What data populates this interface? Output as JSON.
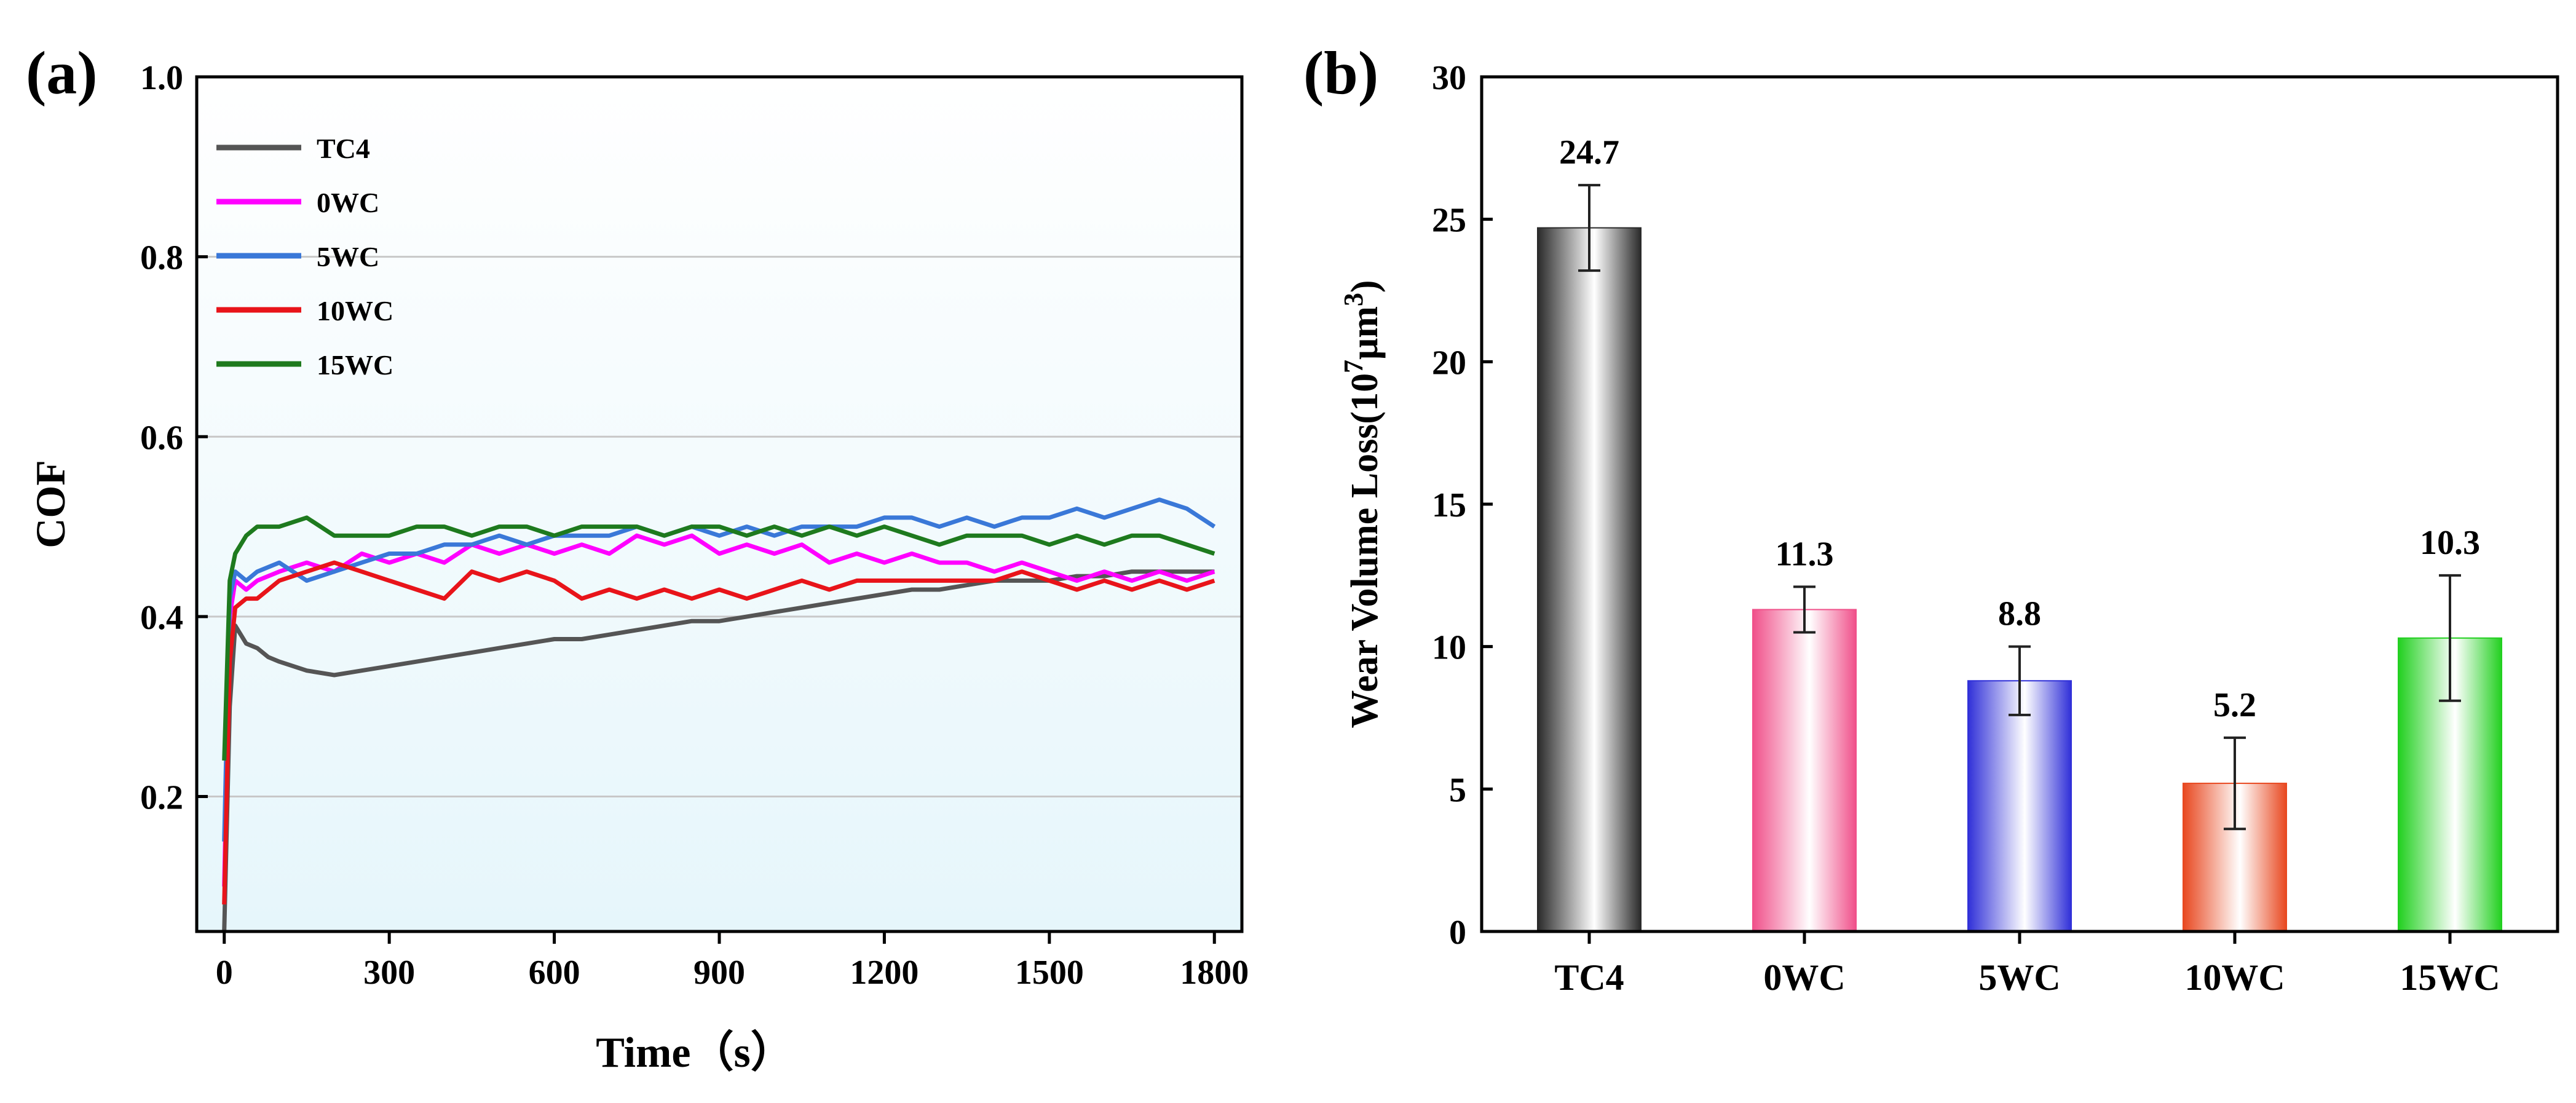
{
  "chart_data": [
    {
      "panel": "(a)",
      "type": "line",
      "xlabel": "Time（s）",
      "ylabel": "COF",
      "xlim": [
        -50,
        1850
      ],
      "ylim": [
        0.05,
        1.0
      ],
      "xticks": [
        0,
        300,
        600,
        900,
        1200,
        1500,
        1800
      ],
      "yticks": [
        0.2,
        0.4,
        0.6,
        0.8,
        1.0
      ],
      "ytick_labels": [
        "0.2",
        "0.4",
        "0.6",
        "0.8",
        "1.0"
      ],
      "grid": true,
      "legend": "top-left",
      "series": [
        {
          "name": "TC4",
          "color": "#555555",
          "x": [
            0,
            10,
            20,
            30,
            40,
            60,
            80,
            100,
            150,
            200,
            250,
            300,
            350,
            400,
            450,
            500,
            550,
            600,
            650,
            700,
            750,
            800,
            850,
            900,
            950,
            1000,
            1050,
            1100,
            1150,
            1200,
            1250,
            1300,
            1350,
            1400,
            1450,
            1500,
            1550,
            1600,
            1650,
            1700,
            1750,
            1800
          ],
          "y": [
            0.05,
            0.3,
            0.39,
            0.38,
            0.37,
            0.365,
            0.355,
            0.35,
            0.34,
            0.335,
            0.34,
            0.345,
            0.35,
            0.355,
            0.36,
            0.365,
            0.37,
            0.375,
            0.375,
            0.38,
            0.385,
            0.39,
            0.395,
            0.395,
            0.4,
            0.405,
            0.41,
            0.415,
            0.42,
            0.425,
            0.43,
            0.43,
            0.435,
            0.44,
            0.44,
            0.44,
            0.445,
            0.445,
            0.45,
            0.45,
            0.45,
            0.45
          ]
        },
        {
          "name": "0WC",
          "color": "#ff00ff",
          "x": [
            0,
            10,
            20,
            40,
            60,
            100,
            150,
            200,
            250,
            300,
            350,
            400,
            450,
            500,
            550,
            600,
            650,
            700,
            750,
            800,
            850,
            900,
            950,
            1000,
            1050,
            1100,
            1150,
            1200,
            1250,
            1300,
            1350,
            1400,
            1450,
            1500,
            1550,
            1600,
            1650,
            1700,
            1750,
            1800
          ],
          "y": [
            0.1,
            0.4,
            0.44,
            0.43,
            0.44,
            0.45,
            0.46,
            0.45,
            0.47,
            0.46,
            0.47,
            0.46,
            0.48,
            0.47,
            0.48,
            0.47,
            0.48,
            0.47,
            0.49,
            0.48,
            0.49,
            0.47,
            0.48,
            0.47,
            0.48,
            0.46,
            0.47,
            0.46,
            0.47,
            0.46,
            0.46,
            0.45,
            0.46,
            0.45,
            0.44,
            0.45,
            0.44,
            0.45,
            0.44,
            0.45
          ]
        },
        {
          "name": "5WC",
          "color": "#3a78d8",
          "x": [
            0,
            10,
            20,
            40,
            60,
            100,
            150,
            200,
            250,
            300,
            350,
            400,
            450,
            500,
            550,
            600,
            650,
            700,
            750,
            800,
            850,
            900,
            950,
            1000,
            1050,
            1100,
            1150,
            1200,
            1250,
            1300,
            1350,
            1400,
            1450,
            1500,
            1550,
            1600,
            1650,
            1700,
            1750,
            1800
          ],
          "y": [
            0.15,
            0.42,
            0.45,
            0.44,
            0.45,
            0.46,
            0.44,
            0.45,
            0.46,
            0.47,
            0.47,
            0.48,
            0.48,
            0.49,
            0.48,
            0.49,
            0.49,
            0.49,
            0.5,
            0.49,
            0.5,
            0.49,
            0.5,
            0.49,
            0.5,
            0.5,
            0.5,
            0.51,
            0.51,
            0.5,
            0.51,
            0.5,
            0.51,
            0.51,
            0.52,
            0.51,
            0.52,
            0.53,
            0.52,
            0.5
          ]
        },
        {
          "name": "10WC",
          "color": "#e8141a",
          "x": [
            0,
            10,
            20,
            40,
            60,
            100,
            150,
            200,
            250,
            300,
            350,
            400,
            450,
            500,
            550,
            600,
            650,
            700,
            750,
            800,
            850,
            900,
            950,
            1000,
            1050,
            1100,
            1150,
            1200,
            1250,
            1300,
            1350,
            1400,
            1450,
            1500,
            1550,
            1600,
            1650,
            1700,
            1750,
            1800
          ],
          "y": [
            0.08,
            0.35,
            0.41,
            0.42,
            0.42,
            0.44,
            0.45,
            0.46,
            0.45,
            0.44,
            0.43,
            0.42,
            0.45,
            0.44,
            0.45,
            0.44,
            0.42,
            0.43,
            0.42,
            0.43,
            0.42,
            0.43,
            0.42,
            0.43,
            0.44,
            0.43,
            0.44,
            0.44,
            0.44,
            0.44,
            0.44,
            0.44,
            0.45,
            0.44,
            0.43,
            0.44,
            0.43,
            0.44,
            0.43,
            0.44
          ]
        },
        {
          "name": "15WC",
          "color": "#1e7a1e",
          "x": [
            0,
            10,
            20,
            40,
            60,
            100,
            150,
            200,
            250,
            300,
            350,
            400,
            450,
            500,
            550,
            600,
            650,
            700,
            750,
            800,
            850,
            900,
            950,
            1000,
            1050,
            1100,
            1150,
            1200,
            1250,
            1300,
            1350,
            1400,
            1450,
            1500,
            1550,
            1600,
            1650,
            1700,
            1750,
            1800
          ],
          "y": [
            0.24,
            0.44,
            0.47,
            0.49,
            0.5,
            0.5,
            0.51,
            0.49,
            0.49,
            0.49,
            0.5,
            0.5,
            0.49,
            0.5,
            0.5,
            0.49,
            0.5,
            0.5,
            0.5,
            0.49,
            0.5,
            0.5,
            0.49,
            0.5,
            0.49,
            0.5,
            0.49,
            0.5,
            0.49,
            0.48,
            0.49,
            0.49,
            0.49,
            0.48,
            0.49,
            0.48,
            0.49,
            0.49,
            0.48,
            0.47
          ]
        }
      ]
    },
    {
      "panel": "(b)",
      "type": "bar",
      "xlabel": "",
      "ylabel": "Wear Volume Loss(10",
      "ylabel_exponent": "7",
      "ylabel_unit": "μm",
      "ylabel_unit_exponent": "3",
      "ylabel_close": ")",
      "ylim": [
        0,
        30
      ],
      "yticks": [
        0,
        5,
        10,
        15,
        20,
        25,
        30
      ],
      "categories": [
        "TC4",
        "0WC",
        "5WC",
        "10WC",
        "15WC"
      ],
      "values": [
        24.7,
        11.3,
        8.8,
        5.2,
        10.3
      ],
      "value_labels": [
        "24.7",
        "11.3",
        "8.8",
        "5.2",
        "10.3"
      ],
      "error_low": [
        23.2,
        10.5,
        7.6,
        3.6,
        8.1
      ],
      "error_high": [
        26.2,
        12.1,
        10.0,
        6.8,
        12.5
      ],
      "colors": [
        "#2a2a2a",
        "#f0508a",
        "#3030d8",
        "#e84820",
        "#22d020"
      ],
      "grid": false
    }
  ]
}
